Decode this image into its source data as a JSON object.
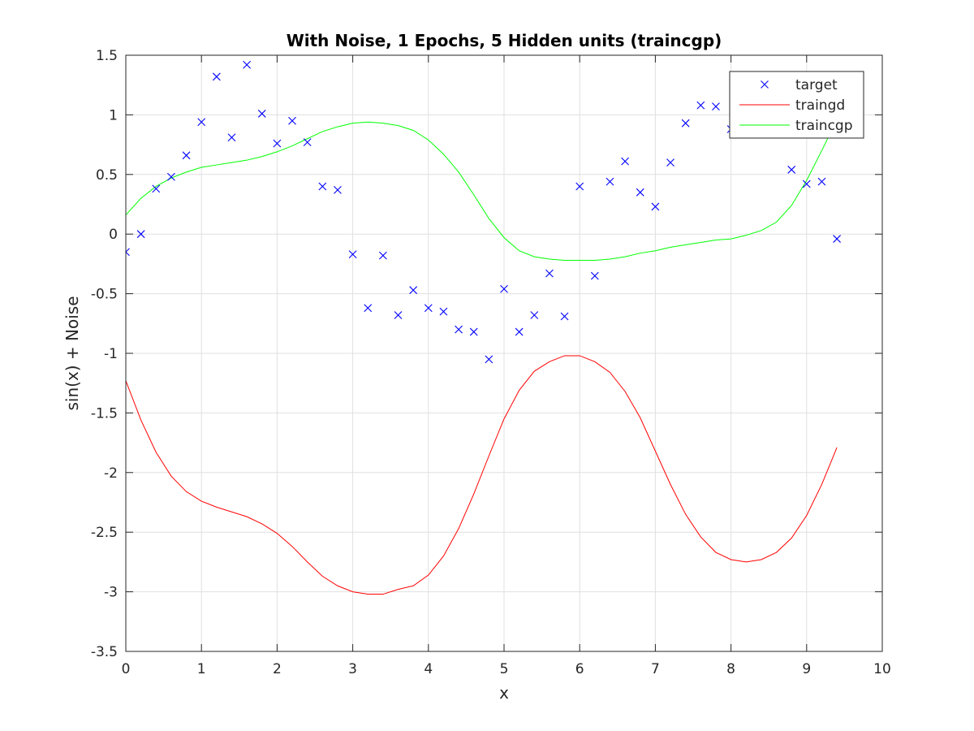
{
  "chart_data": {
    "type": "line",
    "title": "With Noise, 1 Epochs, 5 Hidden units (traincgp)",
    "xlabel": "x",
    "ylabel": "sin(x) + Noise",
    "xlim": [
      0,
      10
    ],
    "ylim": [
      -3.5,
      1.5
    ],
    "xticks": [
      0,
      1,
      2,
      3,
      4,
      5,
      6,
      7,
      8,
      9,
      10
    ],
    "yticks": [
      -3.5,
      -3,
      -2.5,
      -2,
      -1.5,
      -1,
      -0.5,
      0,
      0.5,
      1,
      1.5
    ],
    "xtick_labels": [
      "0",
      "1",
      "2",
      "3",
      "4",
      "5",
      "6",
      "7",
      "8",
      "9",
      "10"
    ],
    "ytick_labels": [
      "-3.5",
      "-3",
      "-2.5",
      "-2",
      "-1.5",
      "-1",
      "-0.5",
      "0",
      "0.5",
      "1",
      "1.5"
    ],
    "grid": true,
    "legend_position": "top-right",
    "series": [
      {
        "name": "target",
        "style": "marker-x",
        "color": "#0000ff",
        "x": [
          0,
          0.2,
          0.4,
          0.6,
          0.8,
          1.0,
          1.2,
          1.4,
          1.6,
          1.8,
          2.0,
          2.2,
          2.4,
          2.6,
          2.8,
          3.0,
          3.2,
          3.4,
          3.6,
          3.8,
          4.0,
          4.2,
          4.4,
          4.6,
          4.8,
          5.0,
          5.2,
          5.4,
          5.6,
          5.8,
          6.0,
          6.2,
          6.4,
          6.6,
          6.8,
          7.0,
          7.2,
          7.4,
          7.6,
          7.8,
          8.0,
          8.2,
          8.4,
          8.6,
          8.8,
          9.0,
          9.2,
          9.4
        ],
        "y": [
          -0.15,
          0.0,
          0.38,
          0.48,
          0.66,
          0.94,
          1.32,
          0.81,
          1.42,
          1.01,
          0.76,
          0.95,
          0.77,
          0.4,
          0.37,
          -0.17,
          -0.62,
          -0.18,
          -0.68,
          -0.47,
          -0.62,
          -0.65,
          -0.8,
          -0.82,
          -1.05,
          -0.46,
          -0.82,
          -0.68,
          -0.33,
          -0.69,
          0.4,
          -0.35,
          0.44,
          0.61,
          0.35,
          0.23,
          0.6,
          0.93,
          1.08,
          1.07,
          0.88,
          0.96,
          0.85,
          0.87,
          0.54,
          0.42,
          0.44,
          -0.04
        ]
      },
      {
        "name": "traingd",
        "style": "line",
        "color": "#ff0000",
        "x": [
          0,
          0.2,
          0.4,
          0.6,
          0.8,
          1.0,
          1.2,
          1.4,
          1.6,
          1.8,
          2.0,
          2.2,
          2.4,
          2.6,
          2.8,
          3.0,
          3.2,
          3.4,
          3.6,
          3.8,
          4.0,
          4.2,
          4.4,
          4.6,
          4.8,
          5.0,
          5.2,
          5.4,
          5.6,
          5.8,
          6.0,
          6.2,
          6.4,
          6.6,
          6.8,
          7.0,
          7.2,
          7.4,
          7.6,
          7.8,
          8.0,
          8.2,
          8.4,
          8.6,
          8.8,
          9.0,
          9.2,
          9.4
        ],
        "y": [
          -1.23,
          -1.56,
          -1.83,
          -2.03,
          -2.16,
          -2.24,
          -2.29,
          -2.33,
          -2.37,
          -2.43,
          -2.51,
          -2.62,
          -2.75,
          -2.87,
          -2.95,
          -3.0,
          -3.02,
          -3.02,
          -2.98,
          -2.95,
          -2.86,
          -2.7,
          -2.47,
          -2.18,
          -1.86,
          -1.55,
          -1.31,
          -1.15,
          -1.07,
          -1.02,
          -1.02,
          -1.07,
          -1.16,
          -1.32,
          -1.54,
          -1.82,
          -2.1,
          -2.35,
          -2.54,
          -2.67,
          -2.73,
          -2.75,
          -2.73,
          -2.67,
          -2.55,
          -2.36,
          -2.1,
          -1.79
        ]
      },
      {
        "name": "traincgp",
        "style": "line",
        "color": "#00ff00",
        "x": [
          0,
          0.2,
          0.4,
          0.6,
          0.8,
          1.0,
          1.2,
          1.4,
          1.6,
          1.8,
          2.0,
          2.2,
          2.4,
          2.6,
          2.8,
          3.0,
          3.2,
          3.4,
          3.6,
          3.8,
          4.0,
          4.2,
          4.4,
          4.6,
          4.8,
          5.0,
          5.2,
          5.4,
          5.6,
          5.8,
          6.0,
          6.2,
          6.4,
          6.6,
          6.8,
          7.0,
          7.2,
          7.4,
          7.6,
          7.8,
          8.0,
          8.2,
          8.4,
          8.6,
          8.8,
          9.0,
          9.2,
          9.4
        ],
        "y": [
          0.16,
          0.3,
          0.4,
          0.47,
          0.52,
          0.56,
          0.58,
          0.6,
          0.62,
          0.65,
          0.69,
          0.74,
          0.8,
          0.86,
          0.9,
          0.93,
          0.94,
          0.93,
          0.91,
          0.87,
          0.79,
          0.67,
          0.52,
          0.33,
          0.13,
          -0.03,
          -0.14,
          -0.19,
          -0.21,
          -0.22,
          -0.22,
          -0.22,
          -0.21,
          -0.19,
          -0.16,
          -0.14,
          -0.11,
          -0.09,
          -0.07,
          -0.05,
          -0.04,
          -0.01,
          0.03,
          0.1,
          0.24,
          0.45,
          0.7,
          0.96
        ]
      }
    ]
  }
}
